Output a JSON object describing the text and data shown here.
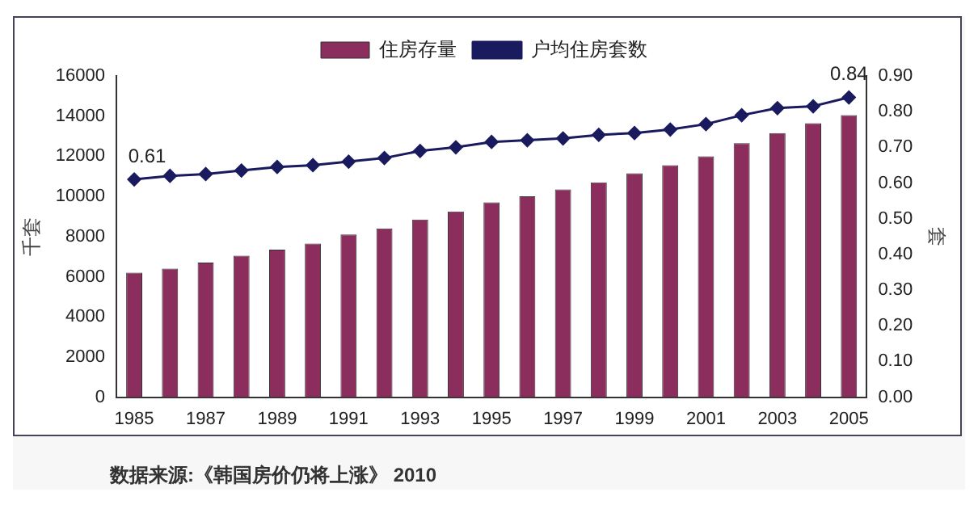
{
  "chart_data": {
    "type": "bar",
    "ylabel": "千套",
    "y2label": "套",
    "categories": [
      "1985",
      null,
      "1987",
      null,
      "1989",
      null,
      "1991",
      null,
      "1993",
      null,
      "1995",
      null,
      "1997",
      null,
      "1999",
      null,
      "2001",
      null,
      "2003",
      null,
      "2005"
    ],
    "series": [
      {
        "name": "住房存量",
        "color": "#8b2e5e",
        "values": [
          6200,
          6400,
          6700,
          7050,
          7350,
          7650,
          8100,
          8400,
          8850,
          9250,
          9700,
          10000,
          10350,
          10700,
          11150,
          11550,
          12000,
          12650,
          13150,
          13650,
          14050
        ]
      },
      {
        "name": "户均住房套数",
        "type": "line",
        "axis": "y2",
        "color": "#1a1a5e",
        "marker": "diamond",
        "values": [
          0.61,
          0.62,
          0.625,
          0.635,
          0.645,
          0.65,
          0.66,
          0.67,
          0.69,
          0.7,
          0.715,
          0.72,
          0.725,
          0.735,
          0.74,
          0.75,
          0.765,
          0.79,
          0.81,
          0.815,
          0.84
        ],
        "value_labels": [
          "0.61",
          null,
          null,
          null,
          null,
          null,
          null,
          null,
          null,
          null,
          null,
          null,
          null,
          null,
          null,
          null,
          null,
          null,
          null,
          null,
          "0.84"
        ]
      }
    ],
    "ylim": [
      0,
      16000
    ],
    "yticks": [
      0,
      2000,
      4000,
      6000,
      8000,
      10000,
      12000,
      14000,
      16000
    ],
    "y2lim": [
      0,
      0.9
    ],
    "y2ticks": [
      {
        "value": 0,
        "label": "0.00"
      },
      {
        "value": 0.1,
        "label": "0.10"
      },
      {
        "value": 0.2,
        "label": "0.20"
      },
      {
        "value": 0.3,
        "label": "0.30"
      },
      {
        "value": 0.4,
        "label": "0.40"
      },
      {
        "value": 0.5,
        "label": "0.50"
      },
      {
        "value": 0.6,
        "label": "0.60"
      },
      {
        "value": 0.7,
        "label": "0.70"
      },
      {
        "value": 0.8,
        "label": "0.80"
      },
      {
        "value": 0.9,
        "label": "0.90"
      }
    ],
    "grid": false,
    "legend": "top",
    "annotations": [
      "数据来源:《韩国房价仍将上涨》 2010"
    ]
  }
}
